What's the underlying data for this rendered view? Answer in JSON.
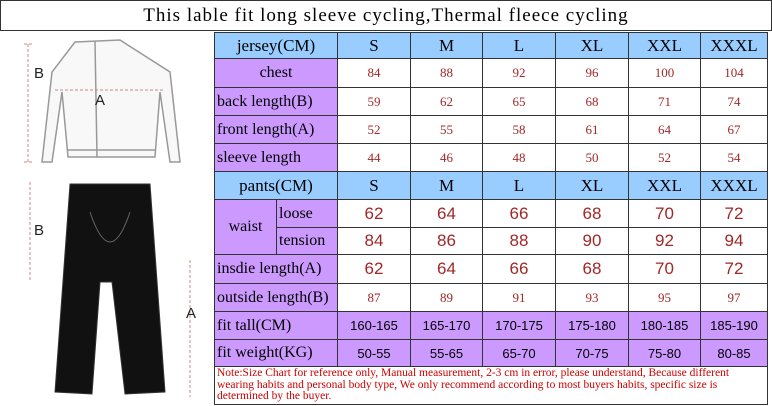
{
  "title": "This lable fit long sleeve cycling,Thermal fleece cycling",
  "figure": {
    "jersey_labels": [
      "B",
      "A"
    ],
    "pants_labels": [
      "B",
      "A"
    ]
  },
  "jersey": {
    "header": [
      "jersey(CM)",
      "S",
      "M",
      "L",
      "XL",
      "XXL",
      "XXXL"
    ],
    "rows": [
      {
        "label": "chest",
        "values": [
          84,
          88,
          92,
          96,
          100,
          104
        ]
      },
      {
        "label": "back length(B)",
        "values": [
          59,
          62,
          65,
          68,
          71,
          74
        ]
      },
      {
        "label": "front length(A)",
        "values": [
          52,
          55,
          58,
          61,
          64,
          67
        ]
      },
      {
        "label": "sleeve length",
        "values": [
          44,
          46,
          48,
          50,
          52,
          54
        ]
      }
    ]
  },
  "pants": {
    "header": [
      "pants(CM)",
      "S",
      "M",
      "L",
      "XL",
      "XXL",
      "XXXL"
    ],
    "waist": {
      "label": "waist",
      "rows": [
        {
          "label": "loose",
          "values": [
            62,
            64,
            66,
            68,
            70,
            72
          ]
        },
        {
          "label": "tension",
          "values": [
            84,
            86,
            88,
            90,
            92,
            94
          ]
        }
      ]
    },
    "rows": [
      {
        "label": "insdie length(A)",
        "values": [
          62,
          64,
          66,
          68,
          70,
          72
        ]
      },
      {
        "label": "outside length(B)",
        "values": [
          87,
          89,
          91,
          93,
          95,
          97
        ]
      }
    ]
  },
  "fit": [
    {
      "label": "fit tall(CM)",
      "values": [
        "160-165",
        "165-170",
        "170-175",
        "175-180",
        "180-185",
        "185-190"
      ]
    },
    {
      "label": "fit weight(KG)",
      "values": [
        "50-55",
        "55-65",
        "65-70",
        "70-75",
        "75-80",
        "80-85"
      ]
    }
  ],
  "note": "Note:Size Chart for reference only, Manual measurement, 2-3 cm in error, please understand, Because different wearing habits and personal body type, We only recommend according to most buyers habits, specific size  is determined by the buyer."
}
